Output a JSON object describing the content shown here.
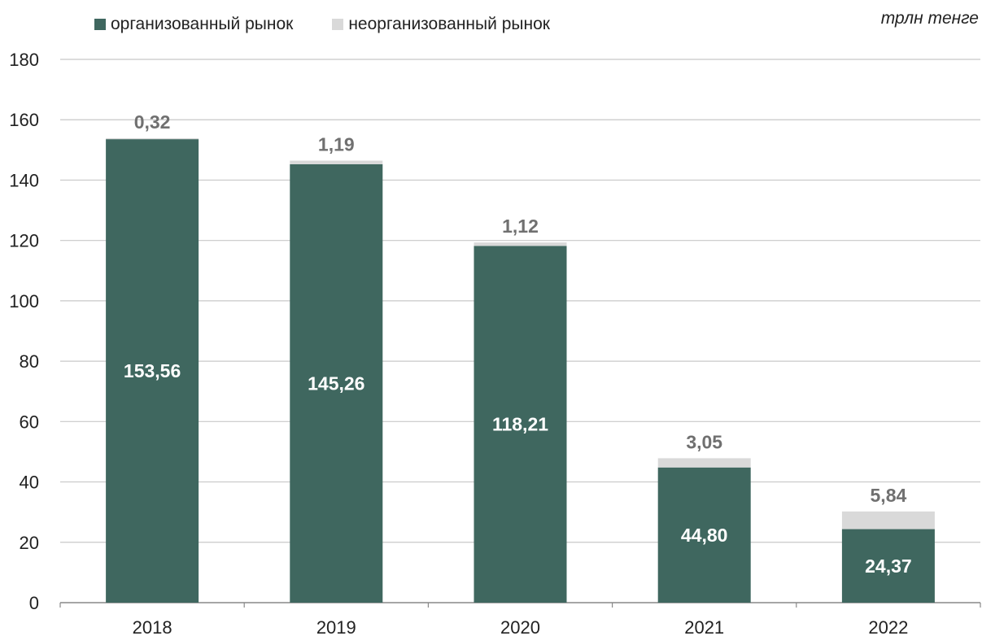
{
  "unit_label": "трлн тенге",
  "colors": {
    "organized": "#3f675f",
    "unorganized": "#d9d9d9",
    "grid": "#c8c8c8",
    "axis": "#888888",
    "outside_label": "#707070"
  },
  "chart_data": {
    "type": "bar",
    "stacked": true,
    "title": "",
    "xlabel": "",
    "ylabel": "",
    "categories": [
      "2018",
      "2019",
      "2020",
      "2021",
      "2022"
    ],
    "series": [
      {
        "name": "организованный рынок",
        "values": [
          153.56,
          145.26,
          118.21,
          44.8,
          24.37
        ],
        "labels": [
          "153,56",
          "145,26",
          "118,21",
          "44,80",
          "24,37"
        ]
      },
      {
        "name": "неорганизованный рынок",
        "values": [
          0.32,
          1.19,
          1.12,
          3.05,
          5.84
        ],
        "labels": [
          "0,32",
          "1,19",
          "1,12",
          "3,05",
          "5,84"
        ]
      }
    ],
    "ylim": [
      0,
      180
    ],
    "yticks": [
      0,
      20,
      40,
      60,
      80,
      100,
      120,
      140,
      160,
      180
    ],
    "grid": true,
    "legend_position": "top-left"
  }
}
